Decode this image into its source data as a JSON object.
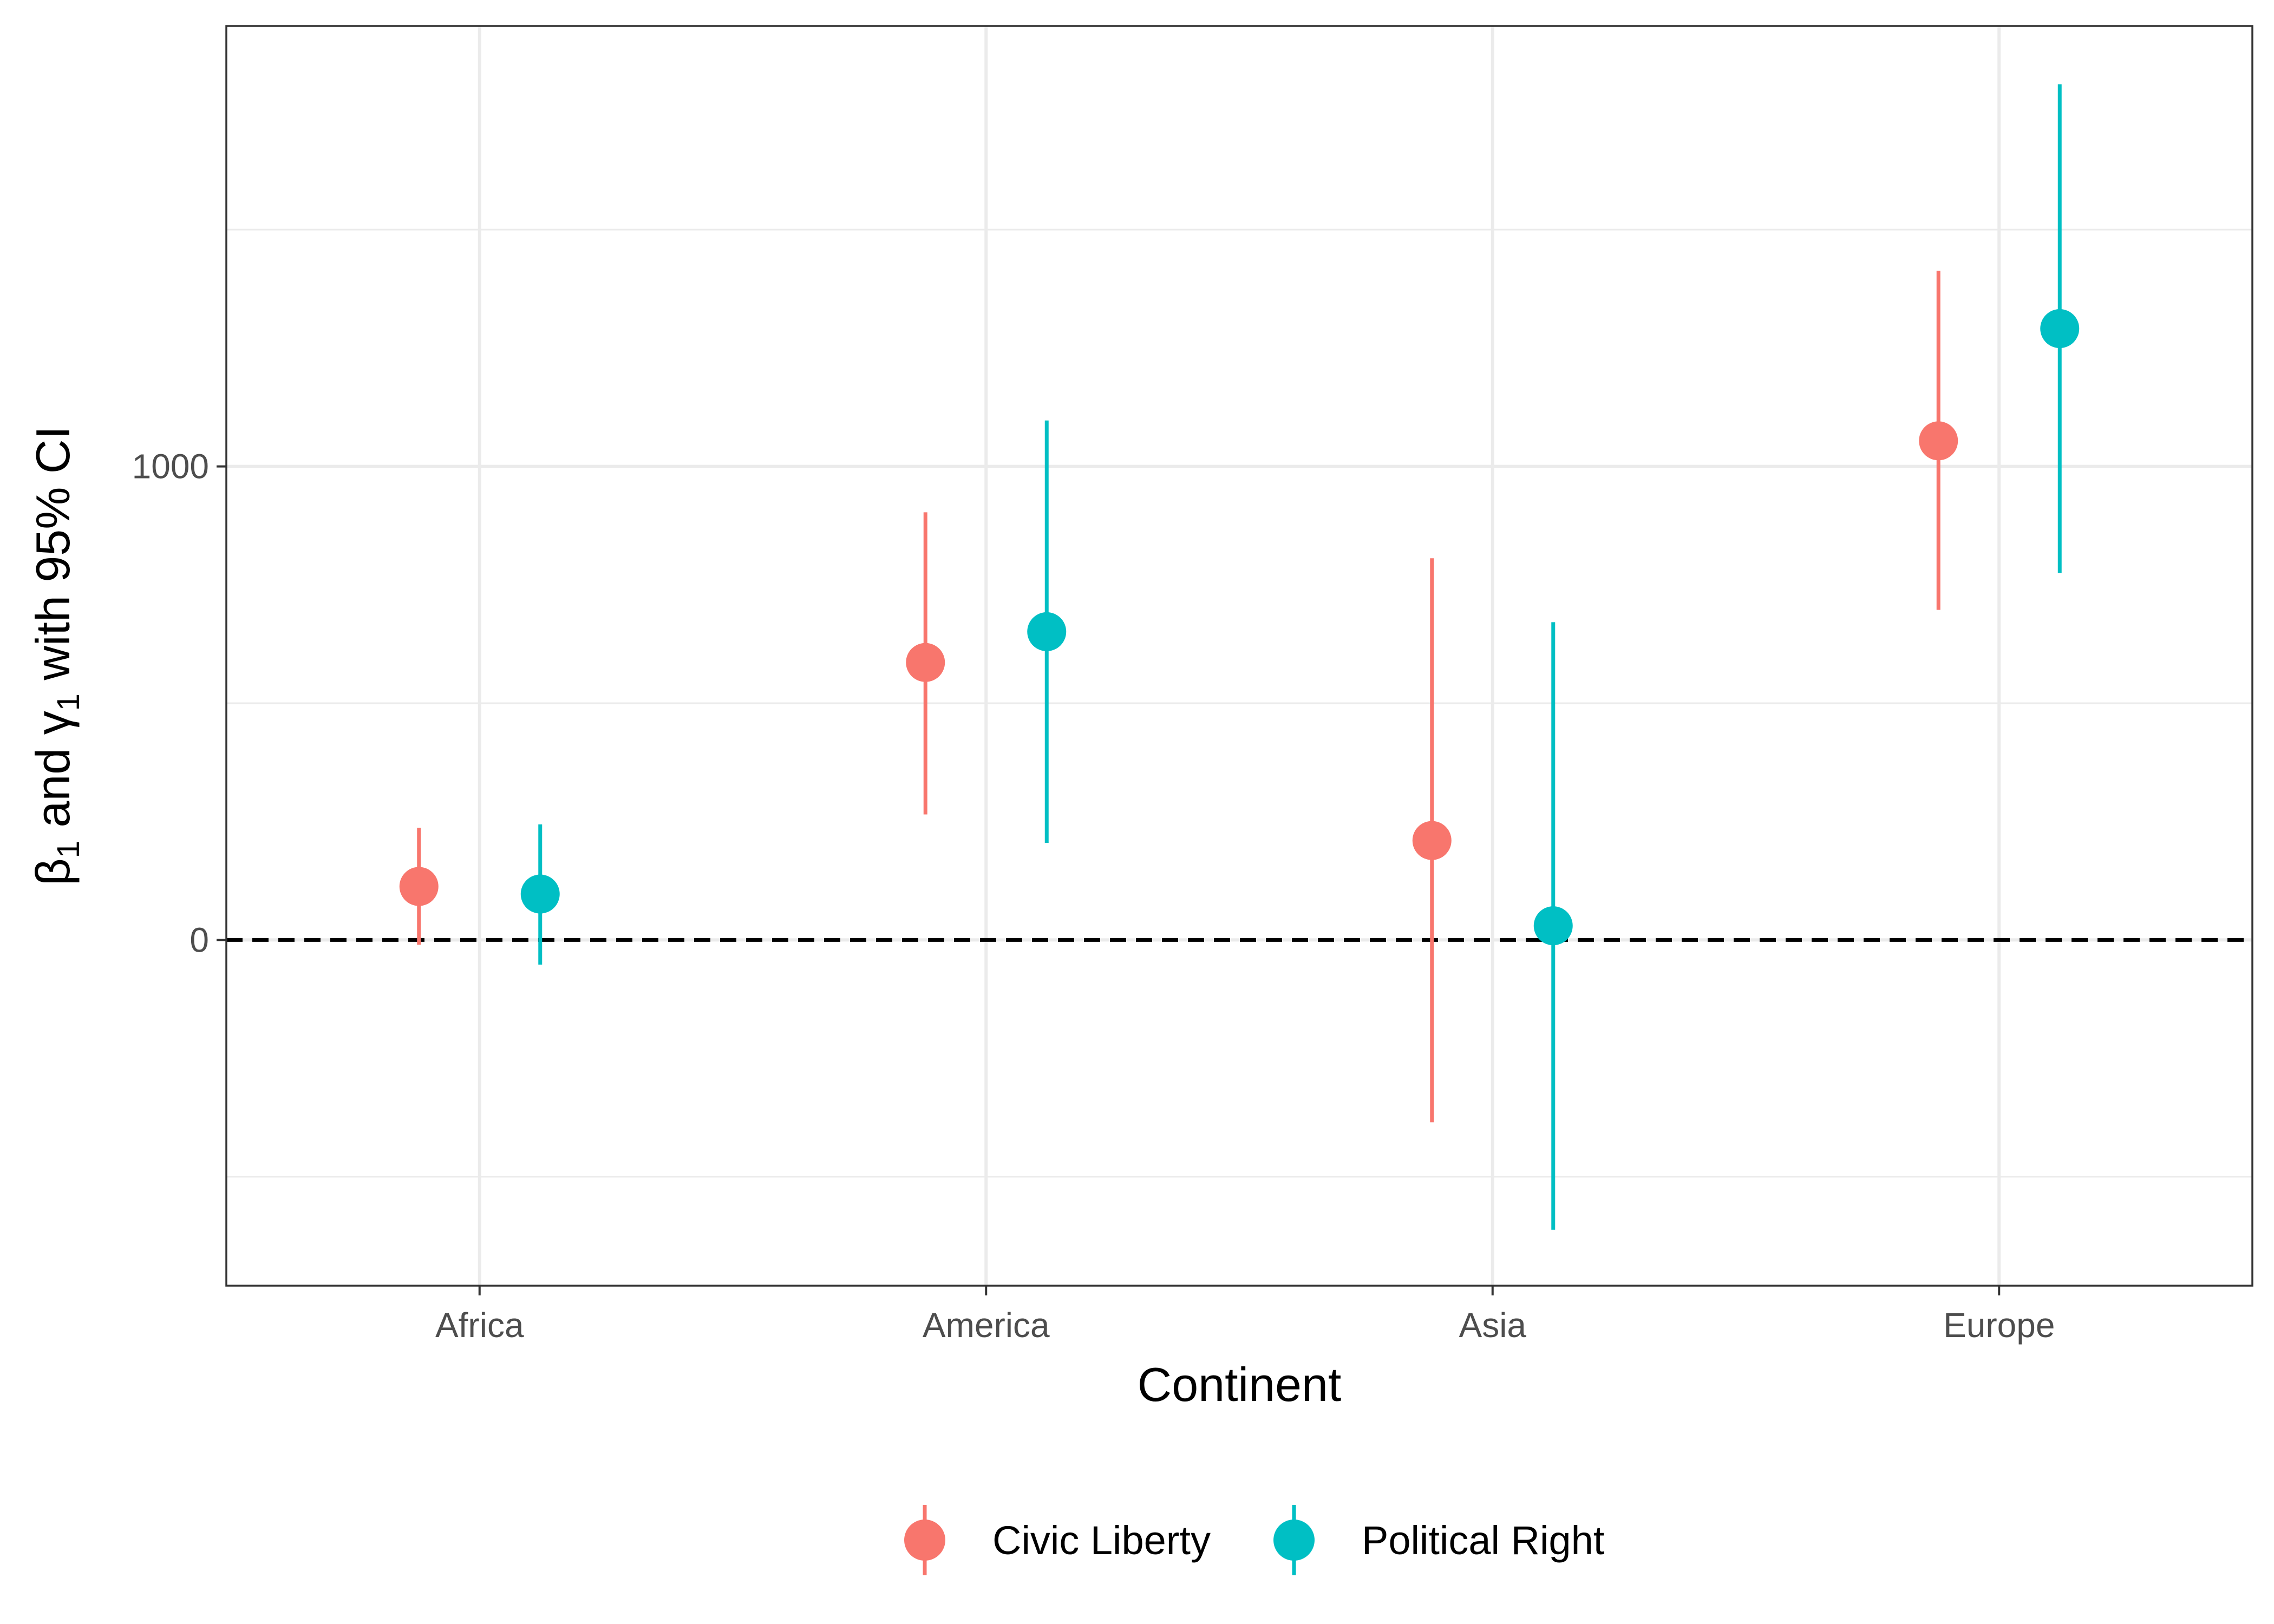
{
  "chart_data": {
    "type": "scatter",
    "subtype": "point-range",
    "xlabel": "Continent",
    "ylabel_parts": [
      "β",
      "1",
      " and ",
      "γ",
      "1",
      " with 95% CI"
    ],
    "categories": [
      "Africa",
      "America",
      "Asia",
      "Europe"
    ],
    "y_ticks": [
      {
        "value": 0,
        "label": "0"
      },
      {
        "value": 1000,
        "label": "1000"
      }
    ],
    "ylim": [
      -730,
      1930
    ],
    "reference_line": {
      "y": 0,
      "style": "dashed",
      "color": "#000000"
    },
    "grid": true,
    "legend_position": "bottom",
    "series": [
      {
        "name": "Civic Liberty",
        "color": "#F8766D",
        "points": [
          {
            "category": "Africa",
            "estimate": 113,
            "lower": -10,
            "upper": 237
          },
          {
            "category": "America",
            "estimate": 586,
            "lower": 265,
            "upper": 903
          },
          {
            "category": "Asia",
            "estimate": 210,
            "lower": -385,
            "upper": 806
          },
          {
            "category": "Europe",
            "estimate": 1054,
            "lower": 697,
            "upper": 1413
          }
        ]
      },
      {
        "name": "Political Right",
        "color": "#00BFC4",
        "points": [
          {
            "category": "Africa",
            "estimate": 97,
            "lower": -52,
            "upper": 244
          },
          {
            "category": "America",
            "estimate": 651,
            "lower": 205,
            "upper": 1097
          },
          {
            "category": "Asia",
            "estimate": 30,
            "lower": -612,
            "upper": 671
          },
          {
            "category": "Europe",
            "estimate": 1291,
            "lower": 775,
            "upper": 1807
          }
        ]
      }
    ]
  }
}
